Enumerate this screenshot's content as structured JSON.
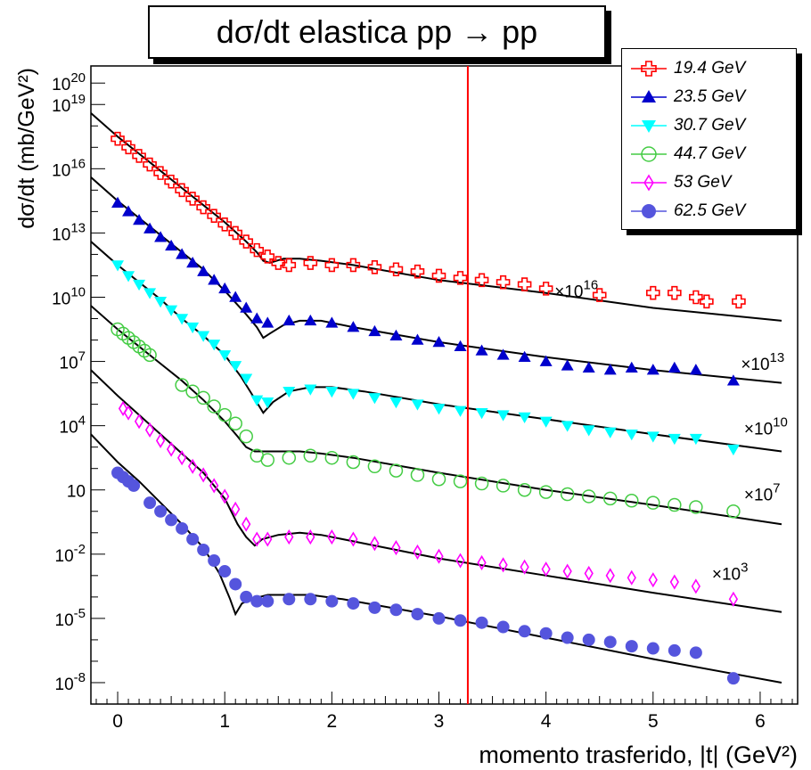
{
  "title": "dσ/dt elastica pp → pp",
  "chart_data": {
    "type": "scatter",
    "title": "dσ/dt elastica pp → pp",
    "xlabel": "momento trasferido, |t| (GeV²)",
    "ylabel": "dσ/dt (mb/GeV²)",
    "xlim": [
      -0.25,
      6.35
    ],
    "ylim_log10": [
      -9,
      20.8
    ],
    "log_y": true,
    "x_ticks": [
      "0",
      "1",
      "2",
      "3",
      "4",
      "5",
      "6"
    ],
    "y_ticks": [
      {
        "base": "10",
        "exp": "20",
        "v": 20
      },
      {
        "base": "10",
        "exp": "19",
        "v": 19
      },
      {
        "base": "10",
        "exp": "16",
        "v": 16
      },
      {
        "base": "10",
        "exp": "13",
        "v": 13
      },
      {
        "base": "10",
        "exp": "10",
        "v": 10
      },
      {
        "base": "10",
        "exp": "7",
        "v": 7
      },
      {
        "base": "10",
        "exp": "4",
        "v": 4
      },
      {
        "base": "10",
        "exp": "",
        "v": 1
      },
      {
        "base": "10",
        "exp": "-2",
        "v": -2
      },
      {
        "base": "10",
        "exp": "-5",
        "v": -5
      },
      {
        "base": "10",
        "exp": "-8",
        "v": -8
      }
    ],
    "vertical_line": {
      "x": 3.27,
      "color": "#ff0000"
    },
    "series": [
      {
        "name": "19.4 GeV",
        "color": "#ff0000",
        "marker": "open-cross",
        "scale": "×10¹⁶",
        "x": [
          0.0,
          0.1,
          0.2,
          0.3,
          0.4,
          0.5,
          0.6,
          0.7,
          0.8,
          0.9,
          1.0,
          1.1,
          1.2,
          1.3,
          1.4,
          1.5,
          1.6,
          1.8,
          2.0,
          2.2,
          2.4,
          2.6,
          2.8,
          3.0,
          3.2,
          3.4,
          3.6,
          3.8,
          4.0,
          4.5,
          5.0,
          5.2,
          5.4,
          5.5,
          5.8
        ],
        "log10y": [
          17.4,
          17.0,
          16.6,
          16.2,
          15.8,
          15.4,
          15.0,
          14.6,
          14.2,
          13.8,
          13.4,
          13.0,
          12.6,
          12.2,
          11.9,
          11.6,
          11.5,
          11.6,
          11.5,
          11.5,
          11.4,
          11.3,
          11.2,
          11.0,
          10.9,
          10.8,
          10.7,
          10.6,
          10.4,
          10.1,
          10.2,
          10.2,
          10.0,
          9.8,
          9.8
        ]
      },
      {
        "name": "23.5 GeV",
        "color": "#0000cc",
        "marker": "filled-triangle-up",
        "scale": "×10¹³",
        "x": [
          0.0,
          0.1,
          0.2,
          0.3,
          0.4,
          0.5,
          0.6,
          0.7,
          0.8,
          0.9,
          1.0,
          1.1,
          1.2,
          1.3,
          1.4,
          1.6,
          1.8,
          2.0,
          2.2,
          2.4,
          2.6,
          2.8,
          3.0,
          3.2,
          3.4,
          3.6,
          3.8,
          4.0,
          4.2,
          4.4,
          4.6,
          4.8,
          5.0,
          5.2,
          5.4,
          5.75
        ],
        "log10y": [
          14.4,
          14.0,
          13.6,
          13.2,
          12.8,
          12.4,
          12.0,
          11.6,
          11.2,
          10.8,
          10.4,
          10.0,
          9.5,
          9.0,
          8.8,
          8.9,
          8.9,
          8.8,
          8.6,
          8.4,
          8.2,
          8.0,
          7.9,
          7.7,
          7.5,
          7.3,
          7.2,
          7.0,
          6.8,
          6.7,
          6.6,
          6.7,
          6.6,
          6.7,
          6.6,
          6.1
        ]
      },
      {
        "name": "30.7 GeV",
        "color": "#00ffff",
        "marker": "filled-triangle-down",
        "scale": "×10¹⁰",
        "x": [
          0.0,
          0.1,
          0.2,
          0.3,
          0.4,
          0.5,
          0.6,
          0.7,
          0.8,
          0.9,
          1.0,
          1.1,
          1.2,
          1.3,
          1.4,
          1.6,
          1.8,
          2.0,
          2.2,
          2.4,
          2.6,
          2.8,
          3.0,
          3.2,
          3.4,
          3.6,
          3.8,
          4.0,
          4.2,
          4.4,
          4.6,
          4.8,
          5.0,
          5.2,
          5.4,
          5.75
        ],
        "log10y": [
          11.5,
          11.0,
          10.6,
          10.2,
          9.8,
          9.4,
          9.0,
          8.6,
          8.2,
          7.8,
          7.3,
          6.8,
          6.2,
          5.2,
          5.1,
          5.6,
          5.7,
          5.6,
          5.5,
          5.3,
          5.1,
          5.0,
          4.8,
          4.7,
          4.6,
          4.5,
          4.4,
          4.2,
          4.0,
          3.8,
          3.7,
          3.6,
          3.5,
          3.4,
          3.4,
          2.9
        ]
      },
      {
        "name": "44.7 GeV",
        "color": "#44cc44",
        "marker": "open-circle",
        "scale": "×10⁷",
        "x": [
          0.0,
          0.05,
          0.1,
          0.15,
          0.2,
          0.25,
          0.3,
          0.6,
          0.7,
          0.8,
          0.9,
          1.0,
          1.1,
          1.2,
          1.3,
          1.4,
          1.6,
          1.8,
          2.0,
          2.2,
          2.4,
          2.6,
          2.8,
          3.0,
          3.2,
          3.4,
          3.6,
          3.8,
          4.0,
          4.2,
          4.4,
          4.6,
          4.8,
          5.0,
          5.2,
          5.4,
          5.75
        ],
        "log10y": [
          8.5,
          8.3,
          8.1,
          7.9,
          7.7,
          7.5,
          7.3,
          5.9,
          5.6,
          5.3,
          4.9,
          4.5,
          4.1,
          3.5,
          2.6,
          2.4,
          2.5,
          2.6,
          2.5,
          2.3,
          2.1,
          1.9,
          1.7,
          1.5,
          1.4,
          1.3,
          1.2,
          1.0,
          0.9,
          0.8,
          0.7,
          0.6,
          0.5,
          0.4,
          0.3,
          0.2,
          0.0
        ]
      },
      {
        "name": "53 GeV",
        "color": "#ff00ff",
        "marker": "open-diamond",
        "scale": "×10³",
        "x": [
          0.05,
          0.1,
          0.2,
          0.3,
          0.4,
          0.5,
          0.6,
          0.7,
          0.8,
          0.9,
          1.0,
          1.1,
          1.2,
          1.3,
          1.4,
          1.6,
          1.8,
          2.0,
          2.2,
          2.4,
          2.6,
          2.8,
          3.0,
          3.2,
          3.4,
          3.6,
          3.8,
          4.0,
          4.2,
          4.4,
          4.6,
          4.8,
          5.0,
          5.2,
          5.4,
          5.75
        ],
        "log10y": [
          4.8,
          4.6,
          4.2,
          3.8,
          3.3,
          2.9,
          2.5,
          2.1,
          1.7,
          1.2,
          0.7,
          0.1,
          -0.6,
          -1.3,
          -1.3,
          -1.2,
          -1.2,
          -1.2,
          -1.3,
          -1.5,
          -1.7,
          -1.9,
          -2.1,
          -2.3,
          -2.4,
          -2.5,
          -2.6,
          -2.7,
          -2.8,
          -2.9,
          -3.0,
          -3.1,
          -3.2,
          -3.3,
          -3.5,
          -4.1
        ]
      },
      {
        "name": "62.5 GeV",
        "color": "#5555dd",
        "marker": "filled-circle",
        "scale": "",
        "x": [
          0.0,
          0.05,
          0.1,
          0.15,
          0.3,
          0.4,
          0.5,
          0.6,
          0.7,
          0.8,
          0.9,
          1.0,
          1.1,
          1.2,
          1.3,
          1.4,
          1.6,
          1.8,
          2.0,
          2.2,
          2.4,
          2.6,
          2.8,
          3.0,
          3.2,
          3.4,
          3.6,
          3.8,
          4.0,
          4.2,
          4.4,
          4.6,
          4.8,
          5.0,
          5.2,
          5.4,
          5.75
        ],
        "log10y": [
          1.8,
          1.6,
          1.4,
          1.2,
          0.4,
          0.0,
          -0.4,
          -0.8,
          -1.3,
          -1.8,
          -2.3,
          -2.8,
          -3.4,
          -4.0,
          -4.2,
          -4.2,
          -4.1,
          -4.1,
          -4.2,
          -4.3,
          -4.5,
          -4.6,
          -4.8,
          -5.0,
          -5.1,
          -5.2,
          -5.4,
          -5.6,
          -5.7,
          -5.9,
          -6.0,
          -6.1,
          -6.3,
          -6.4,
          -6.5,
          -6.6,
          -7.8
        ]
      }
    ],
    "fit_curves": [
      {
        "x": [
          -0.25,
          0.0,
          0.2,
          0.4,
          0.6,
          0.8,
          1.0,
          1.2,
          1.3,
          1.36,
          1.42,
          1.55,
          1.7,
          1.9,
          2.2,
          3.0,
          4.0,
          5.0,
          6.2
        ],
        "log10y": [
          18.6,
          17.5,
          16.7,
          15.9,
          15.1,
          14.3,
          13.5,
          12.6,
          12.1,
          11.7,
          11.6,
          11.8,
          11.8,
          11.7,
          11.5,
          10.8,
          10.2,
          9.5,
          8.9
        ]
      },
      {
        "x": [
          -0.25,
          0.0,
          0.2,
          0.4,
          0.6,
          0.8,
          1.0,
          1.2,
          1.3,
          1.36,
          1.42,
          1.55,
          1.7,
          1.9,
          2.2,
          3.0,
          4.0,
          5.0,
          6.2
        ],
        "log10y": [
          15.6,
          14.5,
          13.7,
          12.9,
          12.1,
          11.3,
          10.3,
          9.2,
          8.6,
          8.1,
          8.3,
          8.7,
          8.9,
          8.9,
          8.6,
          7.9,
          7.2,
          6.6,
          6.0
        ]
      },
      {
        "x": [
          -0.25,
          0.0,
          0.2,
          0.4,
          0.6,
          0.8,
          1.0,
          1.15,
          1.25,
          1.36,
          1.45,
          1.6,
          1.8,
          2.0,
          2.3,
          3.0,
          4.0,
          5.0,
          6.2
        ],
        "log10y": [
          12.6,
          11.5,
          10.7,
          9.9,
          9.0,
          8.2,
          7.3,
          6.3,
          5.5,
          4.6,
          5.1,
          5.6,
          5.8,
          5.8,
          5.6,
          5.0,
          4.3,
          3.6,
          2.8
        ]
      },
      {
        "x": [
          -0.25,
          0.0,
          0.2,
          0.4,
          0.6,
          0.8,
          1.0,
          1.12,
          1.2,
          1.28,
          1.35,
          1.5,
          1.7,
          1.9,
          2.2,
          3.0,
          4.0,
          5.0,
          6.2
        ],
        "log10y": [
          9.6,
          8.5,
          7.7,
          6.9,
          6.1,
          5.2,
          4.2,
          3.5,
          3.0,
          2.8,
          2.8,
          2.8,
          2.8,
          2.7,
          2.5,
          1.8,
          1.0,
          0.3,
          -0.6
        ]
      },
      {
        "x": [
          -0.25,
          0.0,
          0.2,
          0.4,
          0.6,
          0.8,
          1.0,
          1.12,
          1.2,
          1.28,
          1.35,
          1.5,
          1.7,
          1.9,
          2.2,
          3.0,
          4.0,
          5.0,
          6.2
        ],
        "log10y": [
          6.6,
          5.4,
          4.5,
          3.6,
          2.7,
          1.8,
          0.6,
          -0.6,
          -1.2,
          -1.6,
          -1.3,
          -1.1,
          -1.0,
          -1.1,
          -1.4,
          -2.2,
          -3.0,
          -3.8,
          -4.7
        ]
      },
      {
        "x": [
          -0.25,
          0.0,
          0.2,
          0.4,
          0.6,
          0.8,
          0.95,
          1.05,
          1.1,
          1.16,
          1.25,
          1.4,
          1.6,
          1.8,
          2.1,
          3.0,
          4.0,
          5.0,
          6.2
        ],
        "log10y": [
          3.6,
          2.3,
          1.4,
          0.4,
          -0.6,
          -1.7,
          -2.9,
          -4.1,
          -4.8,
          -4.3,
          -4.1,
          -3.9,
          -3.9,
          -3.9,
          -4.1,
          -4.9,
          -5.9,
          -6.9,
          -8.0
        ]
      }
    ],
    "scale_labels": [
      {
        "text": "×10",
        "sup": "16",
        "x": 4.08,
        "log10y": 10.0
      },
      {
        "text": "×10",
        "sup": "13",
        "x": 5.82,
        "log10y": 6.6
      },
      {
        "text": "×10",
        "sup": "10",
        "x": 5.85,
        "log10y": 3.6
      },
      {
        "text": "×10",
        "sup": "7",
        "x": 5.85,
        "log10y": 0.5
      },
      {
        "text": "×10",
        "sup": "3",
        "x": 5.55,
        "log10y": -3.2
      }
    ]
  }
}
